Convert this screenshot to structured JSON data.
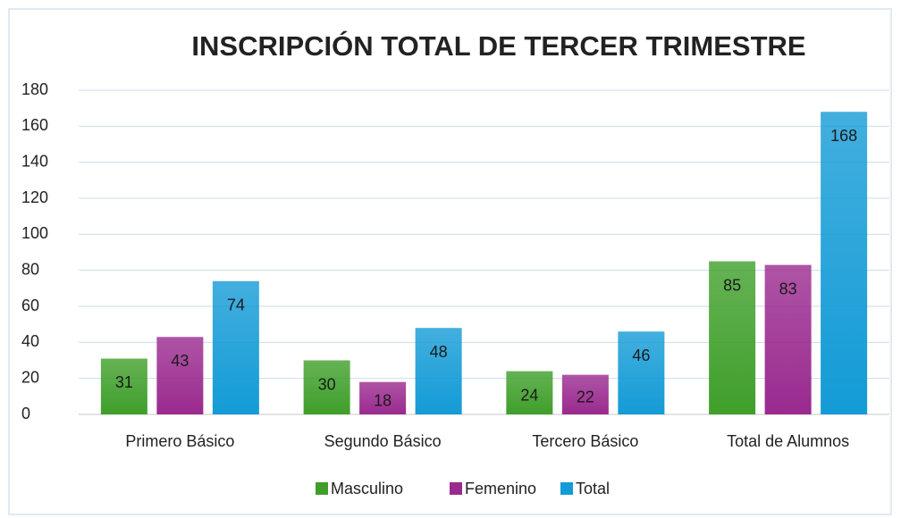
{
  "chart_data": {
    "type": "bar",
    "title": "INSCRIPCIÓN TOTAL DE TERCER TRIMESTRE",
    "categories": [
      "Primero Básico",
      "Segundo Básico",
      "Tercero Básico",
      "Total de Alumnos"
    ],
    "series": [
      {
        "name": "Masculino",
        "color": "#3f9f2a",
        "values": [
          31,
          30,
          24,
          85
        ]
      },
      {
        "name": "Femenino",
        "color": "#9a2a8f",
        "values": [
          43,
          18,
          22,
          83
        ]
      },
      {
        "name": "Total",
        "color": "#139bd6",
        "values": [
          74,
          48,
          46,
          168
        ]
      }
    ],
    "ylim": [
      0,
      180
    ],
    "yticks": [
      0,
      20,
      40,
      60,
      80,
      100,
      120,
      140,
      160,
      180
    ],
    "grid": true,
    "legend": "bottom",
    "data_labels": true
  }
}
